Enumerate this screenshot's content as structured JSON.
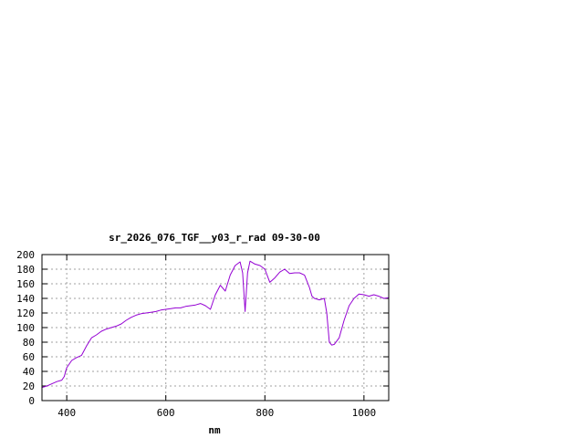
{
  "chart_data": {
    "type": "line",
    "title": "sr_2026_076_TGF__y03_r_rad 09-30-00",
    "xlabel": "nm",
    "ylabel": "",
    "xlim": [
      350,
      1050
    ],
    "ylim": [
      0,
      200
    ],
    "xticks": [
      400,
      600,
      800,
      1000
    ],
    "yticks": [
      0,
      20,
      40,
      60,
      80,
      100,
      120,
      140,
      160,
      180,
      200
    ],
    "grid": true,
    "series": [
      {
        "color": "#9400d3",
        "x": [
          350,
          360,
          370,
          380,
          390,
          395,
          400,
          410,
          420,
          430,
          440,
          450,
          460,
          470,
          480,
          490,
          500,
          510,
          520,
          530,
          540,
          550,
          560,
          570,
          580,
          590,
          600,
          610,
          620,
          630,
          640,
          650,
          660,
          670,
          680,
          690,
          700,
          710,
          720,
          730,
          740,
          750,
          755,
          760,
          765,
          770,
          780,
          790,
          800,
          810,
          820,
          830,
          840,
          850,
          860,
          870,
          880,
          890,
          895,
          900,
          910,
          920,
          925,
          930,
          935,
          940,
          950,
          960,
          970,
          980,
          990,
          1000,
          1010,
          1020,
          1030,
          1040,
          1050
        ],
        "y": [
          18,
          20,
          23,
          26,
          28,
          33,
          45,
          55,
          59,
          62,
          75,
          86,
          90,
          95,
          98,
          100,
          102,
          105,
          110,
          114,
          117,
          119,
          120,
          121,
          122,
          124,
          125,
          126,
          127,
          127,
          129,
          130,
          131,
          133,
          130,
          125,
          145,
          158,
          150,
          172,
          185,
          190,
          175,
          122,
          175,
          191,
          187,
          185,
          180,
          162,
          168,
          176,
          180,
          174,
          175,
          175,
          172,
          155,
          143,
          140,
          138,
          140,
          120,
          80,
          76,
          77,
          86,
          110,
          130,
          140,
          146,
          145,
          143,
          145,
          143,
          140,
          141
        ]
      }
    ]
  }
}
